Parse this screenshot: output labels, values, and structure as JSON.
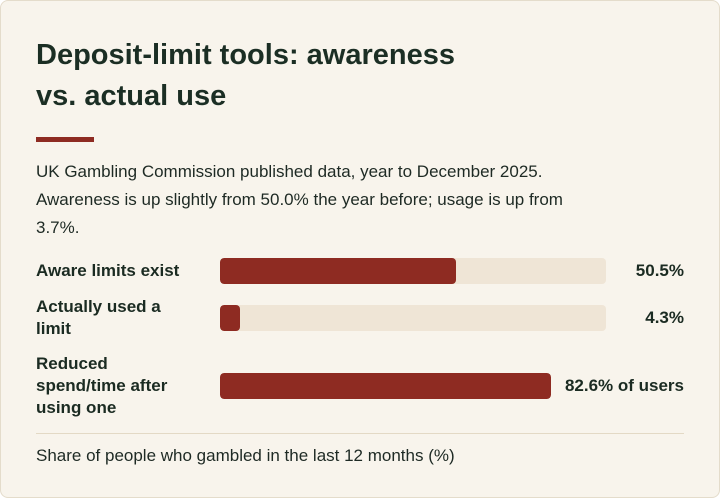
{
  "chart_data": {
    "type": "bar",
    "orientation": "horizontal",
    "title": "Deposit-limit tools: awareness vs. actual use",
    "subtitle": "UK Gambling Commission published data, year to December 2025. Awareness is up slightly from 50.0% the year before; usage is up from 3.7%.",
    "categories": [
      "Aware limits exist",
      "Actually used a limit",
      "Reduced spend/time after using one"
    ],
    "values": [
      50.5,
      4.3,
      82.6
    ],
    "value_labels": [
      "50.5%",
      "4.3%",
      "82.6% of users"
    ],
    "xlim": [
      0,
      82.6
    ],
    "color": "#8e2b22",
    "note": "Share of people who gambled in the last 12 months (%)"
  }
}
